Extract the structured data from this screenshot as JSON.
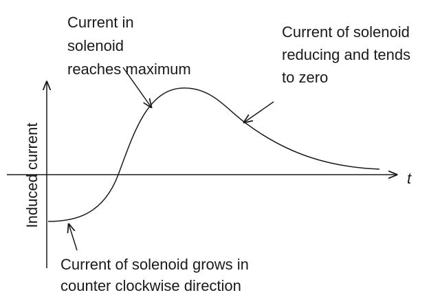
{
  "annotations": [
    {
      "lines": [
        "Current in",
        "solenoid",
        "reaches maximum"
      ]
    },
    {
      "lines": [
        "Current of solenoid",
        "reducing and tends",
        "to zero"
      ]
    },
    {
      "lines": [
        "Current of solenoid grows in",
        "counter clockwise direction"
      ]
    }
  ],
  "y_axis_label": "Induced current",
  "x_axis_label": "t"
}
